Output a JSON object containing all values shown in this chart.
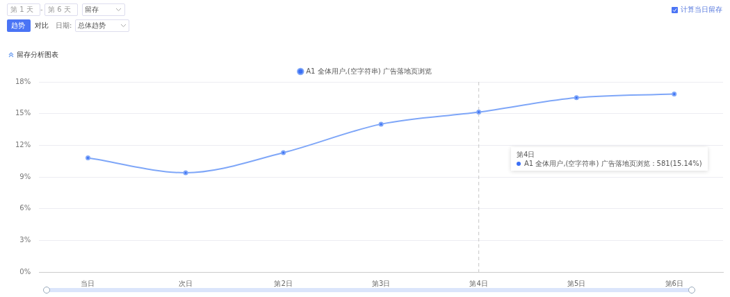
{
  "chart_data": {
    "type": "line",
    "title": "留存分析图表",
    "categories": [
      "当日",
      "次日",
      "第2日",
      "第3日",
      "第4日",
      "第5日",
      "第6日"
    ],
    "series": [
      {
        "name": "A1 全体用户,(空字符串) 广告落地页浏览",
        "color": "#7ea6f8",
        "values": [
          10.8,
          9.4,
          11.3,
          14.0,
          15.14,
          16.5,
          16.85
        ]
      }
    ],
    "ylim": [
      0,
      18
    ],
    "yticks": [
      {
        "value": 0,
        "label": "0%"
      },
      {
        "value": 3,
        "label": "3%"
      },
      {
        "value": 6,
        "label": "6%"
      },
      {
        "value": 9,
        "label": "9%"
      },
      {
        "value": 12,
        "label": "12%"
      },
      {
        "value": 15,
        "label": "15%"
      },
      {
        "value": 18,
        "label": "18%"
      }
    ],
    "grid": "y",
    "legend": "top",
    "marker": "circle",
    "line_style": "solid",
    "ref_lines": [
      {
        "axis": "x",
        "value": "第4日",
        "line_style": "dashed",
        "color": "#c8c8c8"
      }
    ],
    "annotations": [
      "第 1 天",
      "第 6 天",
      "留存",
      "趋势",
      "对比",
      "日期:",
      "总体趋势",
      "计算当日留存",
      "第4日\nA1 全体用户,(空字符串) 广告落地页浏览：581(15.14%)",
      "-"
    ]
  }
}
